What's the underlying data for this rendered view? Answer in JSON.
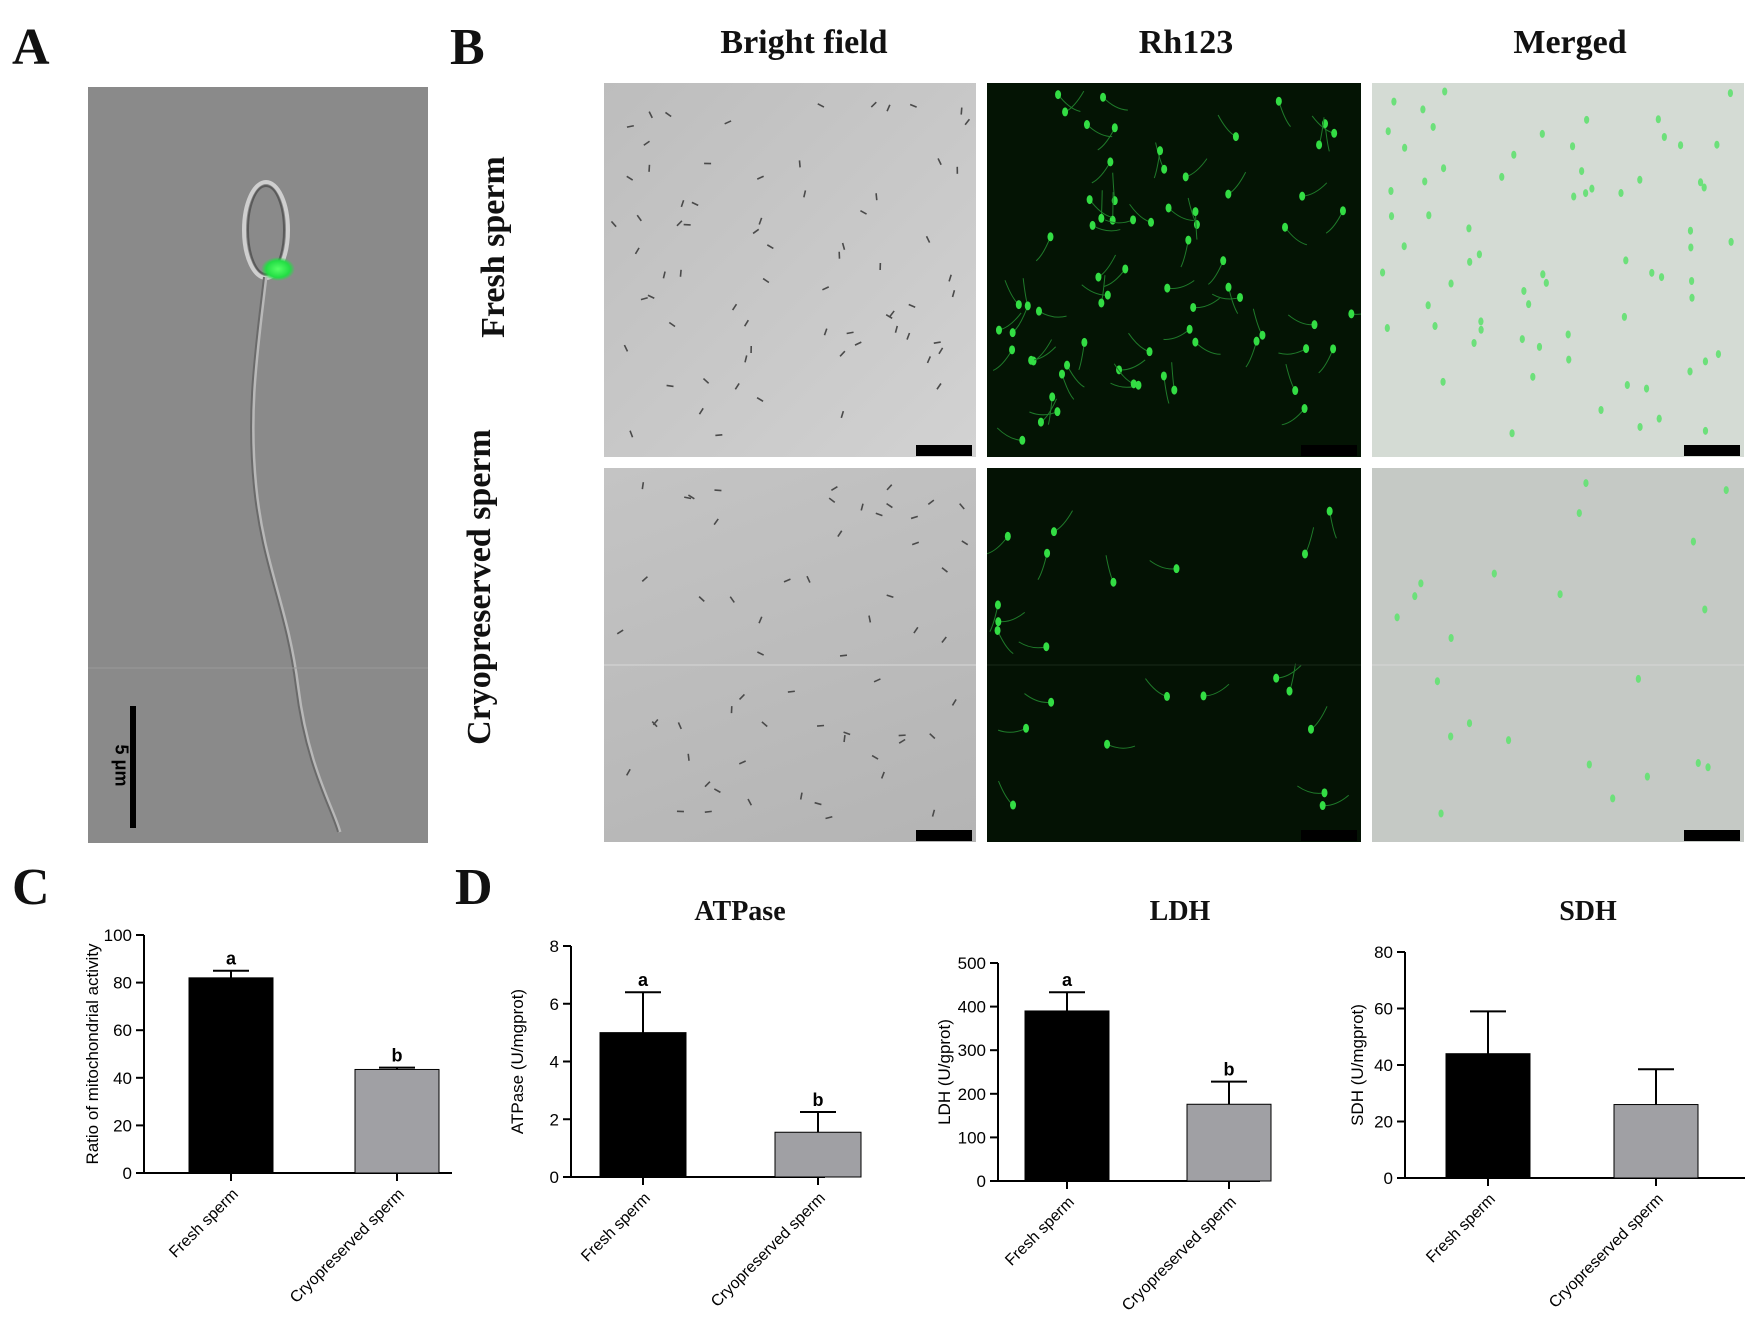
{
  "panels": {
    "a": "A",
    "b": "B",
    "c": "C",
    "d": "D"
  },
  "panel_a": {
    "scale_label": "5 μm"
  },
  "panel_b": {
    "columns": [
      "Bright field",
      "Rh123",
      "Merged"
    ],
    "rows": [
      "Fresh sperm",
      "Cryopreserved sperm"
    ],
    "colors": {
      "fluorescence": "#33dd44",
      "dark_bg": "#051505",
      "bright_bg": "#c8c8c8",
      "merged_bg": "#cfd6cf"
    }
  },
  "chart_data": [
    {
      "type": "bar",
      "panel": "C",
      "title": "",
      "categories": [
        "Fresh sperm",
        "Cryopreserved sperm"
      ],
      "values": [
        82,
        43.5
      ],
      "errors": [
        3,
        0.8
      ],
      "significance": [
        "a",
        "b"
      ],
      "ylabel": "Ratio of mitochondrial activity",
      "xlabel": "",
      "ylim": [
        0,
        100
      ],
      "yticks": [
        0,
        20,
        40,
        60,
        80,
        100
      ],
      "colors": [
        "#000000",
        "#a0a0a4"
      ]
    },
    {
      "type": "bar",
      "panel": "D",
      "title": "ATPase",
      "categories": [
        "Fresh sperm",
        "Cryopreserved sperm"
      ],
      "values": [
        5.0,
        1.55
      ],
      "errors": [
        1.4,
        0.7
      ],
      "significance": [
        "a",
        "b"
      ],
      "ylabel": "ATPase (U/mgprot)",
      "xlabel": "",
      "ylim": [
        0,
        8
      ],
      "yticks": [
        0,
        2,
        4,
        6,
        8
      ],
      "colors": [
        "#000000",
        "#a0a0a4"
      ]
    },
    {
      "type": "bar",
      "panel": "D",
      "title": "LDH",
      "categories": [
        "Fresh sperm",
        "Cryopreserved sperm"
      ],
      "values": [
        390,
        176
      ],
      "errors": [
        43,
        52
      ],
      "significance": [
        "a",
        "b"
      ],
      "ylabel": "LDH (U/gprot)",
      "xlabel": "",
      "ylim": [
        0,
        500
      ],
      "yticks": [
        0,
        100,
        200,
        300,
        400,
        500
      ],
      "colors": [
        "#000000",
        "#a0a0a4"
      ]
    },
    {
      "type": "bar",
      "panel": "D",
      "title": "SDH",
      "categories": [
        "Fresh sperm",
        "Cryopreserved sperm"
      ],
      "values": [
        44,
        26
      ],
      "errors": [
        15,
        12.5
      ],
      "significance": [
        "",
        ""
      ],
      "ylabel": "SDH (U/mgprot)",
      "xlabel": "",
      "ylim": [
        0,
        80
      ],
      "yticks": [
        0,
        20,
        40,
        60,
        80
      ],
      "colors": [
        "#000000",
        "#a0a0a4"
      ]
    }
  ]
}
